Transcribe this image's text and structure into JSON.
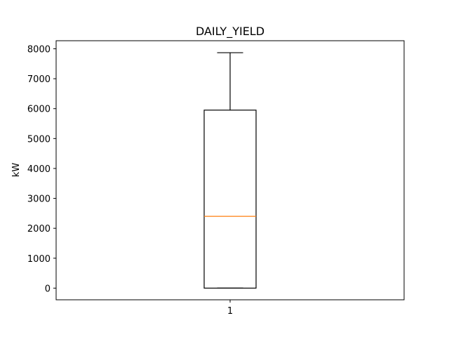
{
  "chart_data": {
    "type": "box",
    "title": "DAILY_YIELD",
    "xlabel": "",
    "ylabel": "kW",
    "categories": [
      "1"
    ],
    "boxes": [
      {
        "category": "1",
        "whisker_low": 0,
        "q1": 0,
        "median": 2400,
        "q3": 5950,
        "whisker_high": 7870
      }
    ],
    "ylim": [
      -390,
      8270
    ],
    "yticks": [
      0,
      1000,
      2000,
      3000,
      4000,
      5000,
      6000,
      7000,
      8000
    ],
    "grid": false,
    "colors": {
      "box": "#000000",
      "median": "#ff7f0e"
    }
  }
}
